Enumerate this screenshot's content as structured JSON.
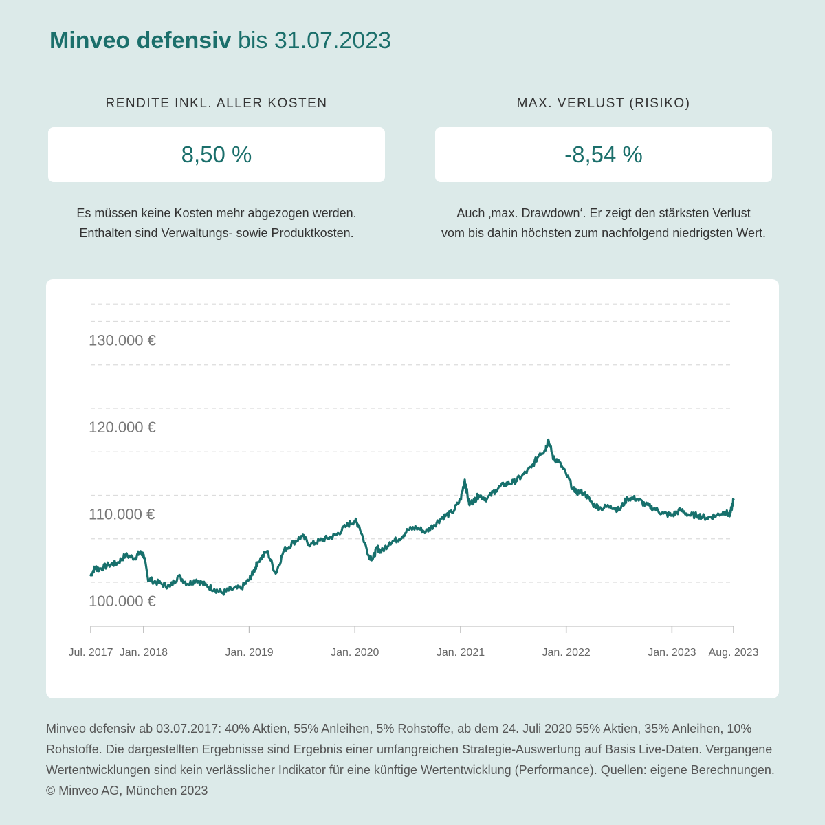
{
  "header": {
    "title_bold": "Minveo defensiv",
    "title_rest": "bis 31.07.2023"
  },
  "kpis": [
    {
      "label": "RENDITE INKL. ALLER KOSTEN",
      "value": "8,50 %",
      "description": [
        "Es müssen keine Kosten mehr abgezogen werden.",
        "Enthalten sind Verwaltungs- sowie Produktkosten."
      ]
    },
    {
      "label": "MAX. VERLUST (RISIKO)",
      "value": "-8,54 %",
      "description": [
        "Auch ‚max. Drawdown‘. Er zeigt den stärksten Verlust",
        "vom bis dahin höchsten zum nachfolgend niedrigsten Wert."
      ]
    }
  ],
  "colors": {
    "background": "#dceae9",
    "accent": "#1b6f6b",
    "line": "#17706c",
    "card": "#ffffff"
  },
  "chart_data": {
    "type": "line",
    "title": "",
    "xlabel": "",
    "ylabel": "",
    "xlim": [
      2017.5,
      2023.583
    ],
    "ylim": [
      99000,
      132000
    ],
    "y_ticks": [
      {
        "value": 100000,
        "label": "100.000 €"
      },
      {
        "value": 110000,
        "label": "110.000 €"
      },
      {
        "value": 120000,
        "label": "120.000 €"
      },
      {
        "value": 130000,
        "label": "130.000 €"
      }
    ],
    "y_gridlines": [
      100000,
      105000,
      110000,
      115000,
      120000,
      125000,
      130000,
      132000
    ],
    "grid": true,
    "x_ticks": [
      {
        "value": 2017.5,
        "label": "Jul. 2017"
      },
      {
        "value": 2018.0,
        "label": "Jan. 2018"
      },
      {
        "value": 2019.0,
        "label": "Jan. 2019"
      },
      {
        "value": 2020.0,
        "label": "Jan. 2020"
      },
      {
        "value": 2021.0,
        "label": "Jan. 2021"
      },
      {
        "value": 2022.0,
        "label": "Jan. 2022"
      },
      {
        "value": 2023.0,
        "label": "Jan. 2023"
      },
      {
        "value": 2023.583,
        "label": "Aug. 2023"
      }
    ],
    "series": [
      {
        "name": "",
        "x": [
          2017.5,
          2017.54,
          2017.58,
          2017.67,
          2017.75,
          2017.83,
          2017.92,
          2017.96,
          2018.0,
          2018.04,
          2018.08,
          2018.17,
          2018.25,
          2018.33,
          2018.42,
          2018.5,
          2018.58,
          2018.67,
          2018.75,
          2018.83,
          2018.92,
          2019.0,
          2019.04,
          2019.08,
          2019.17,
          2019.25,
          2019.33,
          2019.42,
          2019.5,
          2019.58,
          2019.67,
          2019.75,
          2019.83,
          2019.92,
          2020.0,
          2020.04,
          2020.13,
          2020.17,
          2020.21,
          2020.25,
          2020.33,
          2020.42,
          2020.5,
          2020.58,
          2020.67,
          2020.75,
          2020.83,
          2020.92,
          2021.0,
          2021.04,
          2021.08,
          2021.13,
          2021.17,
          2021.25,
          2021.33,
          2021.42,
          2021.5,
          2021.58,
          2021.67,
          2021.75,
          2021.8,
          2021.83,
          2021.88,
          2021.92,
          2022.0,
          2022.08,
          2022.17,
          2022.25,
          2022.33,
          2022.42,
          2022.5,
          2022.58,
          2022.67,
          2022.75,
          2022.83,
          2022.92,
          2023.0,
          2023.08,
          2023.17,
          2023.25,
          2023.33,
          2023.42,
          2023.5,
          2023.55,
          2023.583
        ],
        "values": [
          100800,
          101700,
          101500,
          102000,
          102200,
          103100,
          102800,
          103400,
          103200,
          100500,
          100200,
          99800,
          99500,
          100700,
          99800,
          100300,
          99700,
          99200,
          98800,
          99200,
          99300,
          100300,
          101200,
          102300,
          103600,
          101000,
          103700,
          104600,
          105300,
          104300,
          104800,
          105100,
          105500,
          106500,
          107100,
          106500,
          103100,
          102700,
          104000,
          103500,
          104600,
          105000,
          106000,
          106300,
          105800,
          106600,
          107500,
          108000,
          109500,
          111800,
          109000,
          109400,
          110000,
          109600,
          110600,
          111300,
          111500,
          112200,
          113200,
          114800,
          115200,
          116400,
          114200,
          114000,
          112400,
          110400,
          110300,
          109000,
          108500,
          108800,
          108300,
          109700,
          109600,
          108900,
          108500,
          107900,
          107700,
          108300,
          107700,
          107700,
          107400,
          107700,
          108100,
          107700,
          109500
        ]
      }
    ]
  },
  "footnote": "Minveo defensiv ab 03.07.2017: 40% Aktien, 55% Anleihen, 5% Rohstoffe, ab dem 24. Juli 2020 55% Aktien, 35% Anleihen, 10% Rohstoffe. Die dargestellten Ergebnisse sind Ergebnis einer umfangreichen Strategie-Auswertung auf Basis Live-Daten. Vergangene Wertentwicklungen sind kein verlässlicher Indikator für eine künftige Wertentwicklung (Performance). Quellen: eigene Berechnungen. © Minveo AG, München 2023"
}
